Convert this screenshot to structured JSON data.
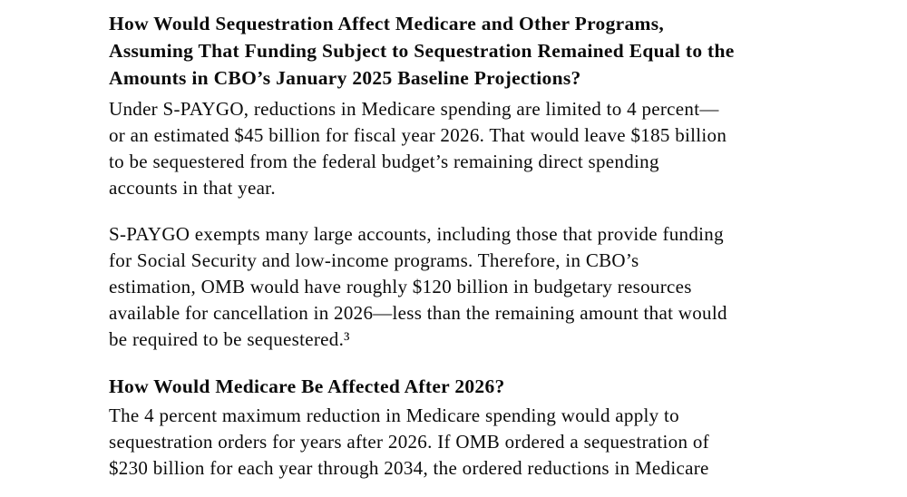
{
  "document": {
    "heading_1": {
      "lines": [
        "How Would Sequestration Affect Medicare and Other Programs,",
        "Assuming That Funding Subject to Sequestration Remained Equal to the",
        "Amounts in CBO’s January 2025 Baseline Projections?"
      ]
    },
    "paragraph_1": {
      "lines": [
        "Under S-PAYGO, reductions in Medicare spending are limited to 4 percent—",
        "or an estimated $45 billion for fiscal year 2026. That would leave $185 billion",
        "to be sequestered from the federal budget’s remaining direct spending",
        "accounts in that year."
      ]
    },
    "paragraph_2": {
      "lines": [
        "S-PAYGO exempts many large accounts, including those that provide funding",
        "for Social Security and low-income programs. Therefore, in CBO’s",
        "estimation, OMB would have roughly $120 billion in budgetary resources",
        "available for cancellation in 2026—less than the remaining amount that would",
        "be required to be sequestered.³"
      ]
    },
    "heading_2": {
      "lines": [
        "How Would Medicare Be Affected After 2026?"
      ]
    },
    "paragraph_3": {
      "lines": [
        "The 4 percent maximum reduction in Medicare spending would apply to",
        "sequestration orders for years after 2026. If OMB ordered a sequestration of",
        "$230 billion for each year through 2034, the ordered reductions in Medicare"
      ]
    }
  }
}
